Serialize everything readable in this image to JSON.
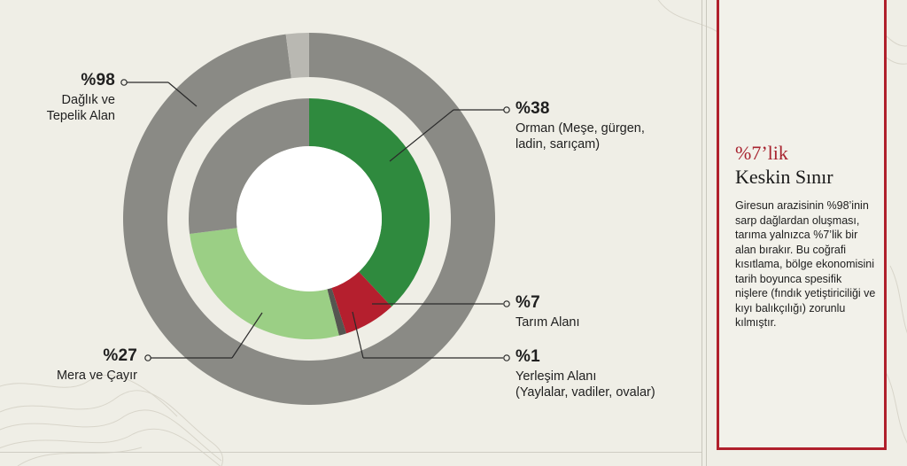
{
  "chart_data": {
    "type": "pie",
    "rings": [
      {
        "name": "",
        "slices": [
          {
            "label": "Dağlık ve Tepelik Alan",
            "value": 98,
            "display": "%98",
            "color": "#8a8a85"
          },
          {
            "label": "",
            "value": 2,
            "display": "",
            "color": "#b9b8b2"
          }
        ]
      },
      {
        "name": "",
        "slices": [
          {
            "label": "Orman (Meşe, gürgen, ladin, sarıçam)",
            "value": 38,
            "display": "%38",
            "color": "#2f8a3e"
          },
          {
            "label": "Tarım Alanı",
            "value": 7,
            "display": "%7",
            "color": "#b51f2e"
          },
          {
            "label": "Yerleşim Alanı (Yaylalar, vadiler, ovalar)",
            "value": 1,
            "display": "%1",
            "color": "#555550"
          },
          {
            "label": "Mera ve Çayır",
            "value": 27,
            "display": "%27",
            "color": "#9bcf85"
          },
          {
            "label": "",
            "value": 27,
            "display": "",
            "color": "#8a8a85"
          }
        ]
      }
    ]
  },
  "labels": {
    "mountain": {
      "pct": "%98",
      "line1": "Dağlık ve",
      "line2": "Tepelik Alan"
    },
    "forest": {
      "pct": "%38",
      "line1": "Orman (Meşe, gürgen,",
      "line2": "ladin, sarıçam)"
    },
    "agri": {
      "pct": "%7",
      "line1": "Tarım Alanı"
    },
    "settle": {
      "pct": "%1",
      "line1": "Yerleşim Alanı",
      "line2": "(Yaylalar, vadiler, ovalar)"
    },
    "meadow": {
      "pct": "%27",
      "line1": "Mera ve Çayır"
    }
  },
  "panel": {
    "title": "%7’lik",
    "subtitle": "Keskin Sınır",
    "body": "Giresun arazisinin %98’inin sarp dağlardan oluşması, tarıma yalnızca %7’lik bir alan bırakır. Bu coğrafi kısıtlama, bölge ekonomisini tarih boyunca spesifik nişlere (fındık yetiştiriciliği ve kıyı balıkçılığı) zorunlu kılmıştır."
  }
}
